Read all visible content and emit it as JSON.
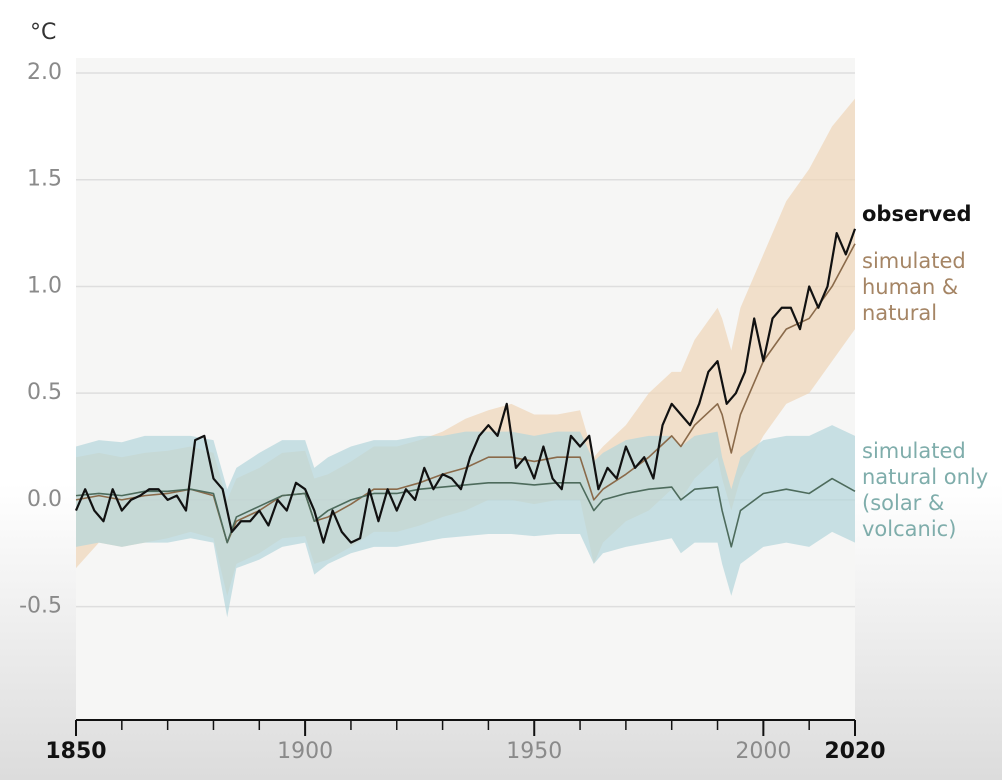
{
  "chart_data": {
    "type": "line",
    "y_label": "°C",
    "xlim": [
      1850,
      2020
    ],
    "ylim": [
      -1.05,
      2.0
    ],
    "xticks": [
      1850,
      1900,
      1950,
      2000,
      2020
    ],
    "xminor_ticks": [
      1850,
      1860,
      1870,
      1880,
      1890,
      1900,
      1910,
      1920,
      1930,
      1940,
      1950,
      1960,
      1970,
      1980,
      1990,
      2000,
      2010,
      2020
    ],
    "yticks": [
      {
        "value": 2.0,
        "label": "2.0"
      },
      {
        "value": 1.5,
        "label": "1.5"
      },
      {
        "value": 1.0,
        "label": "1.0"
      },
      {
        "value": 0.5,
        "label": "0.5"
      },
      {
        "value": 0.0,
        "label": "0.0"
      },
      -0.5
    ],
    "grid": true,
    "series": [
      {
        "name": "simulated human & natural",
        "color": "#8a6a4a",
        "legend_color": "#a58565",
        "band_color": "#f0d6b8",
        "x": [
          1850,
          1855,
          1860,
          1865,
          1870,
          1875,
          1880,
          1883,
          1885,
          1890,
          1895,
          1900,
          1902,
          1905,
          1910,
          1915,
          1920,
          1925,
          1930,
          1935,
          1940,
          1945,
          1950,
          1955,
          1960,
          1963,
          1965,
          1970,
          1975,
          1980,
          1982,
          1985,
          1990,
          1991,
          1993,
          1995,
          2000,
          2005,
          2010,
          2015,
          2020
        ],
        "values": [
          0.0,
          0.02,
          0.0,
          0.02,
          0.03,
          0.05,
          0.02,
          -0.2,
          -0.1,
          -0.05,
          0.02,
          0.03,
          -0.1,
          -0.08,
          -0.02,
          0.05,
          0.05,
          0.08,
          0.12,
          0.15,
          0.2,
          0.2,
          0.18,
          0.2,
          0.2,
          0.0,
          0.05,
          0.12,
          0.2,
          0.3,
          0.25,
          0.35,
          0.45,
          0.4,
          0.22,
          0.4,
          0.65,
          0.8,
          0.85,
          1.0,
          1.2
        ],
        "band_upper": [
          0.2,
          0.22,
          0.2,
          0.22,
          0.23,
          0.25,
          0.22,
          0.0,
          0.1,
          0.15,
          0.22,
          0.23,
          0.1,
          0.12,
          0.18,
          0.25,
          0.25,
          0.28,
          0.32,
          0.38,
          0.42,
          0.45,
          0.4,
          0.4,
          0.42,
          0.2,
          0.25,
          0.35,
          0.5,
          0.6,
          0.6,
          0.75,
          0.9,
          0.85,
          0.7,
          0.9,
          1.15,
          1.4,
          1.55,
          1.75,
          1.88
        ],
        "band_lower": [
          -0.32,
          -0.2,
          -0.22,
          -0.2,
          -0.18,
          -0.15,
          -0.18,
          -0.45,
          -0.3,
          -0.25,
          -0.18,
          -0.17,
          -0.3,
          -0.28,
          -0.22,
          -0.15,
          -0.15,
          -0.12,
          -0.08,
          -0.05,
          0.0,
          0.0,
          -0.02,
          0.0,
          0.0,
          -0.3,
          -0.2,
          -0.1,
          -0.05,
          0.05,
          0.0,
          0.1,
          0.2,
          0.1,
          -0.05,
          0.1,
          0.3,
          0.45,
          0.5,
          0.65,
          0.8
        ]
      },
      {
        "name": "simulated natural only (solar & volcanic)",
        "color": "#4d6b5c",
        "legend_color": "#7fadab",
        "band_color": "#b3d5db",
        "x": [
          1850,
          1855,
          1860,
          1865,
          1870,
          1875,
          1880,
          1883,
          1885,
          1890,
          1895,
          1900,
          1902,
          1905,
          1910,
          1915,
          1920,
          1925,
          1930,
          1935,
          1940,
          1945,
          1950,
          1955,
          1960,
          1963,
          1965,
          1970,
          1975,
          1980,
          1982,
          1985,
          1990,
          1991,
          1993,
          1995,
          2000,
          2005,
          2010,
          2015,
          2020
        ],
        "values": [
          0.02,
          0.03,
          0.02,
          0.04,
          0.04,
          0.05,
          0.03,
          -0.2,
          -0.08,
          -0.03,
          0.02,
          0.03,
          -0.1,
          -0.05,
          0.0,
          0.03,
          0.03,
          0.05,
          0.06,
          0.07,
          0.08,
          0.08,
          0.07,
          0.08,
          0.08,
          -0.05,
          0.0,
          0.03,
          0.05,
          0.06,
          0.0,
          0.05,
          0.06,
          -0.05,
          -0.22,
          -0.05,
          0.03,
          0.05,
          0.03,
          0.1,
          0.04
        ],
        "band_upper": [
          0.25,
          0.28,
          0.27,
          0.3,
          0.3,
          0.3,
          0.28,
          0.05,
          0.15,
          0.22,
          0.28,
          0.28,
          0.15,
          0.2,
          0.25,
          0.28,
          0.28,
          0.3,
          0.3,
          0.32,
          0.32,
          0.32,
          0.3,
          0.32,
          0.32,
          0.18,
          0.22,
          0.28,
          0.3,
          0.3,
          0.25,
          0.3,
          0.32,
          0.2,
          0.05,
          0.2,
          0.28,
          0.3,
          0.3,
          0.35,
          0.3
        ],
        "band_lower": [
          -0.22,
          -0.2,
          -0.22,
          -0.2,
          -0.2,
          -0.18,
          -0.2,
          -0.55,
          -0.32,
          -0.28,
          -0.22,
          -0.2,
          -0.35,
          -0.3,
          -0.25,
          -0.22,
          -0.22,
          -0.2,
          -0.18,
          -0.17,
          -0.16,
          -0.16,
          -0.17,
          -0.16,
          -0.16,
          -0.3,
          -0.25,
          -0.22,
          -0.2,
          -0.18,
          -0.25,
          -0.2,
          -0.2,
          -0.3,
          -0.45,
          -0.3,
          -0.22,
          -0.2,
          -0.22,
          -0.15,
          -0.2
        ]
      },
      {
        "name": "observed",
        "color": "#111111",
        "legend_color": "#111111",
        "x": [
          1850,
          1852,
          1854,
          1856,
          1858,
          1860,
          1862,
          1864,
          1866,
          1868,
          1870,
          1872,
          1874,
          1876,
          1878,
          1880,
          1882,
          1884,
          1886,
          1888,
          1890,
          1892,
          1894,
          1896,
          1898,
          1900,
          1902,
          1904,
          1906,
          1908,
          1910,
          1912,
          1914,
          1916,
          1918,
          1920,
          1922,
          1924,
          1926,
          1928,
          1930,
          1932,
          1934,
          1936,
          1938,
          1940,
          1942,
          1944,
          1946,
          1948,
          1950,
          1952,
          1954,
          1956,
          1958,
          1960,
          1962,
          1964,
          1966,
          1968,
          1970,
          1972,
          1974,
          1976,
          1978,
          1980,
          1982,
          1984,
          1986,
          1988,
          1990,
          1992,
          1994,
          1996,
          1998,
          2000,
          2002,
          2004,
          2006,
          2008,
          2010,
          2012,
          2014,
          2016,
          2018,
          2020
        ],
        "values": [
          -0.05,
          0.05,
          -0.05,
          -0.1,
          0.05,
          -0.05,
          0.0,
          0.02,
          0.05,
          0.05,
          0.0,
          0.02,
          -0.05,
          0.28,
          0.3,
          0.1,
          0.05,
          -0.15,
          -0.1,
          -0.1,
          -0.05,
          -0.12,
          0.0,
          -0.05,
          0.08,
          0.05,
          -0.05,
          -0.2,
          -0.05,
          -0.15,
          -0.2,
          -0.18,
          0.05,
          -0.1,
          0.05,
          -0.05,
          0.05,
          0.0,
          0.15,
          0.05,
          0.12,
          0.1,
          0.05,
          0.2,
          0.3,
          0.35,
          0.3,
          0.45,
          0.15,
          0.2,
          0.1,
          0.25,
          0.1,
          0.05,
          0.3,
          0.25,
          0.3,
          0.05,
          0.15,
          0.1,
          0.25,
          0.15,
          0.2,
          0.1,
          0.35,
          0.45,
          0.4,
          0.35,
          0.45,
          0.6,
          0.65,
          0.45,
          0.5,
          0.6,
          0.85,
          0.65,
          0.85,
          0.9,
          0.9,
          0.8,
          1.0,
          0.9,
          1.0,
          1.25,
          1.15,
          1.27
        ]
      }
    ]
  }
}
